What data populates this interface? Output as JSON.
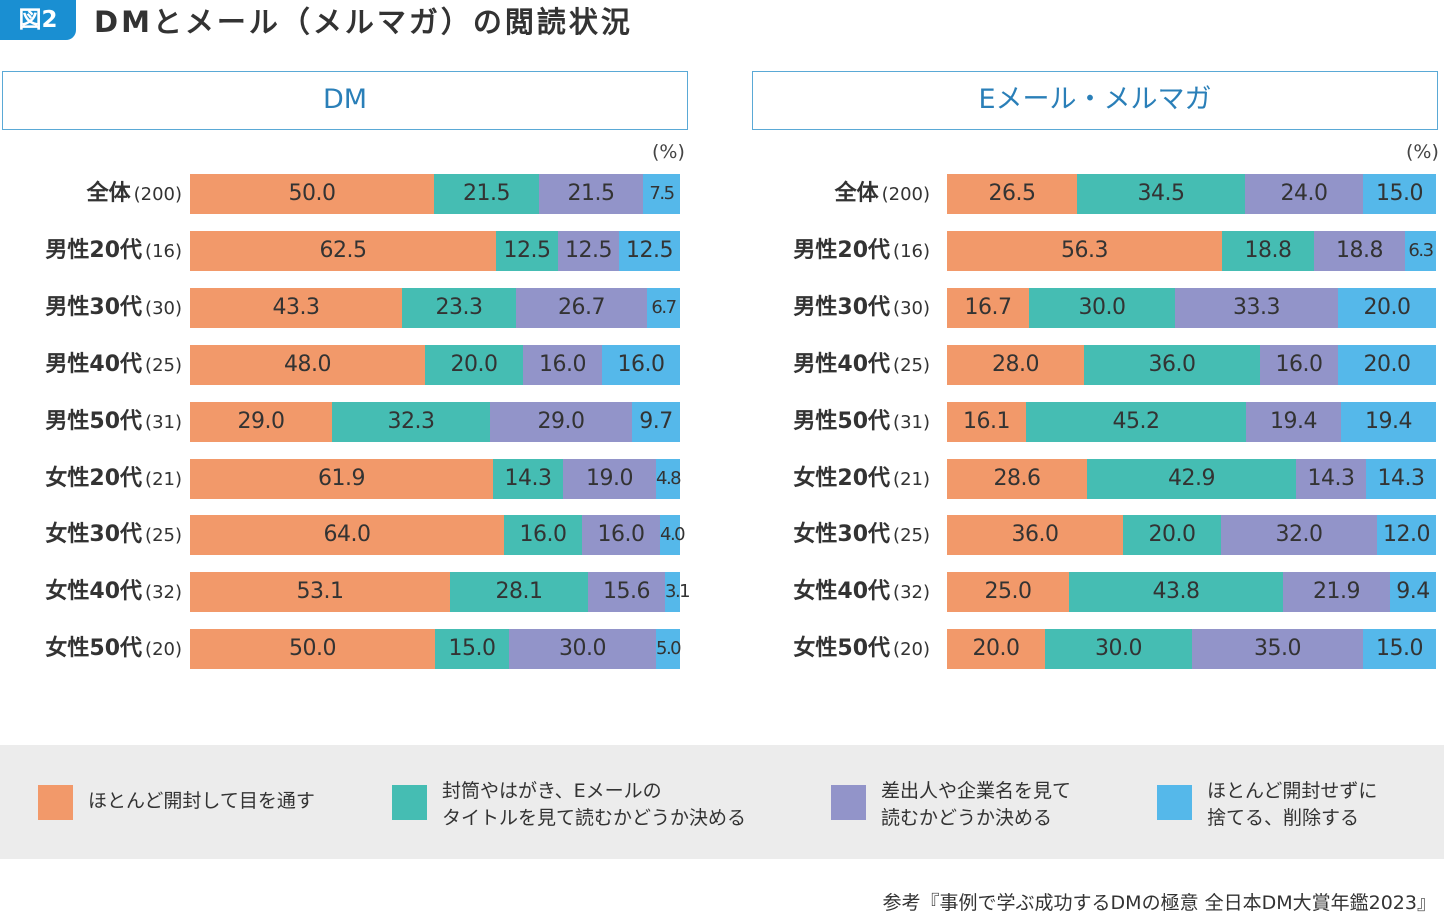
{
  "figure": {
    "badge": "図2",
    "title": "DMとメール（メルマガ）の閲読状況",
    "source": "参考『事例で学ぶ成功するDMの極意 全日本DM大賞年鑑2023』"
  },
  "colors": {
    "accent": "#1a8fd2",
    "series": [
      "#f2996a",
      "#45bdb3",
      "#9294c9",
      "#55b8ea"
    ]
  },
  "legend": [
    {
      "line1": "ほとんど開封して目を通す",
      "line2": ""
    },
    {
      "line1": "封筒やはがき、Eメールの",
      "line2": "タイトルを見て読むかどうか決める"
    },
    {
      "line1": "差出人や企業名を見て",
      "line2": "読むかどうか決める"
    },
    {
      "line1": "ほとんど開封せずに",
      "line2": "捨てる、削除する"
    }
  ],
  "chart_data": [
    {
      "type": "bar",
      "stacked": true,
      "orientation": "horizontal",
      "title": "DM",
      "unit": "(%)",
      "categories": [
        "全体",
        "男性20代",
        "男性30代",
        "男性40代",
        "男性50代",
        "女性20代",
        "女性30代",
        "女性40代",
        "女性50代"
      ],
      "n": [
        "(200)",
        "(16)",
        "(30)",
        "(25)",
        "(31)",
        "(21)",
        "(25)",
        "(32)",
        "(20)"
      ],
      "series": [
        {
          "name": "ほとんど開封して目を通す",
          "values": [
            50.0,
            62.5,
            43.3,
            48.0,
            29.0,
            61.9,
            64.0,
            53.1,
            50.0
          ]
        },
        {
          "name": "封筒やはがき、Eメールのタイトルを見て読むかどうか決める",
          "values": [
            21.5,
            12.5,
            23.3,
            20.0,
            32.3,
            14.3,
            16.0,
            28.1,
            15.0
          ]
        },
        {
          "name": "差出人や企業名を見て読むかどうか決める",
          "values": [
            21.5,
            12.5,
            26.7,
            16.0,
            29.0,
            19.0,
            16.0,
            15.6,
            30.0
          ]
        },
        {
          "name": "ほとんど開封せずに捨てる、削除する",
          "values": [
            7.5,
            12.5,
            6.7,
            16.0,
            9.7,
            4.8,
            4.0,
            3.1,
            5.0
          ]
        }
      ],
      "labels": [
        [
          "50.0",
          "21.5",
          "21.5",
          "7.5"
        ],
        [
          "62.5",
          "12.5",
          "12.5",
          "12.5"
        ],
        [
          "43.3",
          "23.3",
          "26.7",
          "6.7"
        ],
        [
          "48.0",
          "20.0",
          "16.0",
          "16.0"
        ],
        [
          "29.0",
          "32.3",
          "29.0",
          "9.7"
        ],
        [
          "61.9",
          "14.3",
          "19.0",
          "4.8"
        ],
        [
          "64.0",
          "16.0",
          "16.0",
          "4.0"
        ],
        [
          "53.1",
          "28.1",
          "15.6",
          "3.1"
        ],
        [
          "50.0",
          "15.0",
          "30.0",
          "5.0"
        ]
      ]
    },
    {
      "type": "bar",
      "stacked": true,
      "orientation": "horizontal",
      "title": "Eメール・メルマガ",
      "unit": "(%)",
      "categories": [
        "全体",
        "男性20代",
        "男性30代",
        "男性40代",
        "男性50代",
        "女性20代",
        "女性30代",
        "女性40代",
        "女性50代"
      ],
      "n": [
        "(200)",
        "(16)",
        "(30)",
        "(25)",
        "(31)",
        "(21)",
        "(25)",
        "(32)",
        "(20)"
      ],
      "series": [
        {
          "name": "ほとんど開封して目を通す",
          "values": [
            26.5,
            56.3,
            16.7,
            28.0,
            16.1,
            28.6,
            36.0,
            25.0,
            20.0
          ]
        },
        {
          "name": "封筒やはがき、Eメールのタイトルを見て読むかどうか決める",
          "values": [
            34.5,
            18.8,
            30.0,
            36.0,
            45.2,
            42.9,
            20.0,
            43.8,
            30.0
          ]
        },
        {
          "name": "差出人や企業名を見て読むかどうか決める",
          "values": [
            24.0,
            18.8,
            33.3,
            16.0,
            19.4,
            14.3,
            32.0,
            21.9,
            35.0
          ]
        },
        {
          "name": "ほとんど開封せずに捨てる、削除する",
          "values": [
            15.0,
            6.3,
            20.0,
            20.0,
            19.4,
            14.3,
            12.0,
            9.4,
            15.0
          ]
        }
      ],
      "labels": [
        [
          "26.5",
          "34.5",
          "24.0",
          "15.0"
        ],
        [
          "56.3",
          "18.8",
          "18.8",
          "6.3"
        ],
        [
          "16.7",
          "30.0",
          "33.3",
          "20.0"
        ],
        [
          "28.0",
          "36.0",
          "16.0",
          "20.0"
        ],
        [
          "16.1",
          "45.2",
          "19.4",
          "19.4"
        ],
        [
          "28.6",
          "42.9",
          "14.3",
          "14.3"
        ],
        [
          "36.0",
          "20.0",
          "32.0",
          "12.0"
        ],
        [
          "25.0",
          "43.8",
          "21.9",
          "9.4"
        ],
        [
          "20.0",
          "30.0",
          "35.0",
          "15.0"
        ]
      ]
    }
  ]
}
